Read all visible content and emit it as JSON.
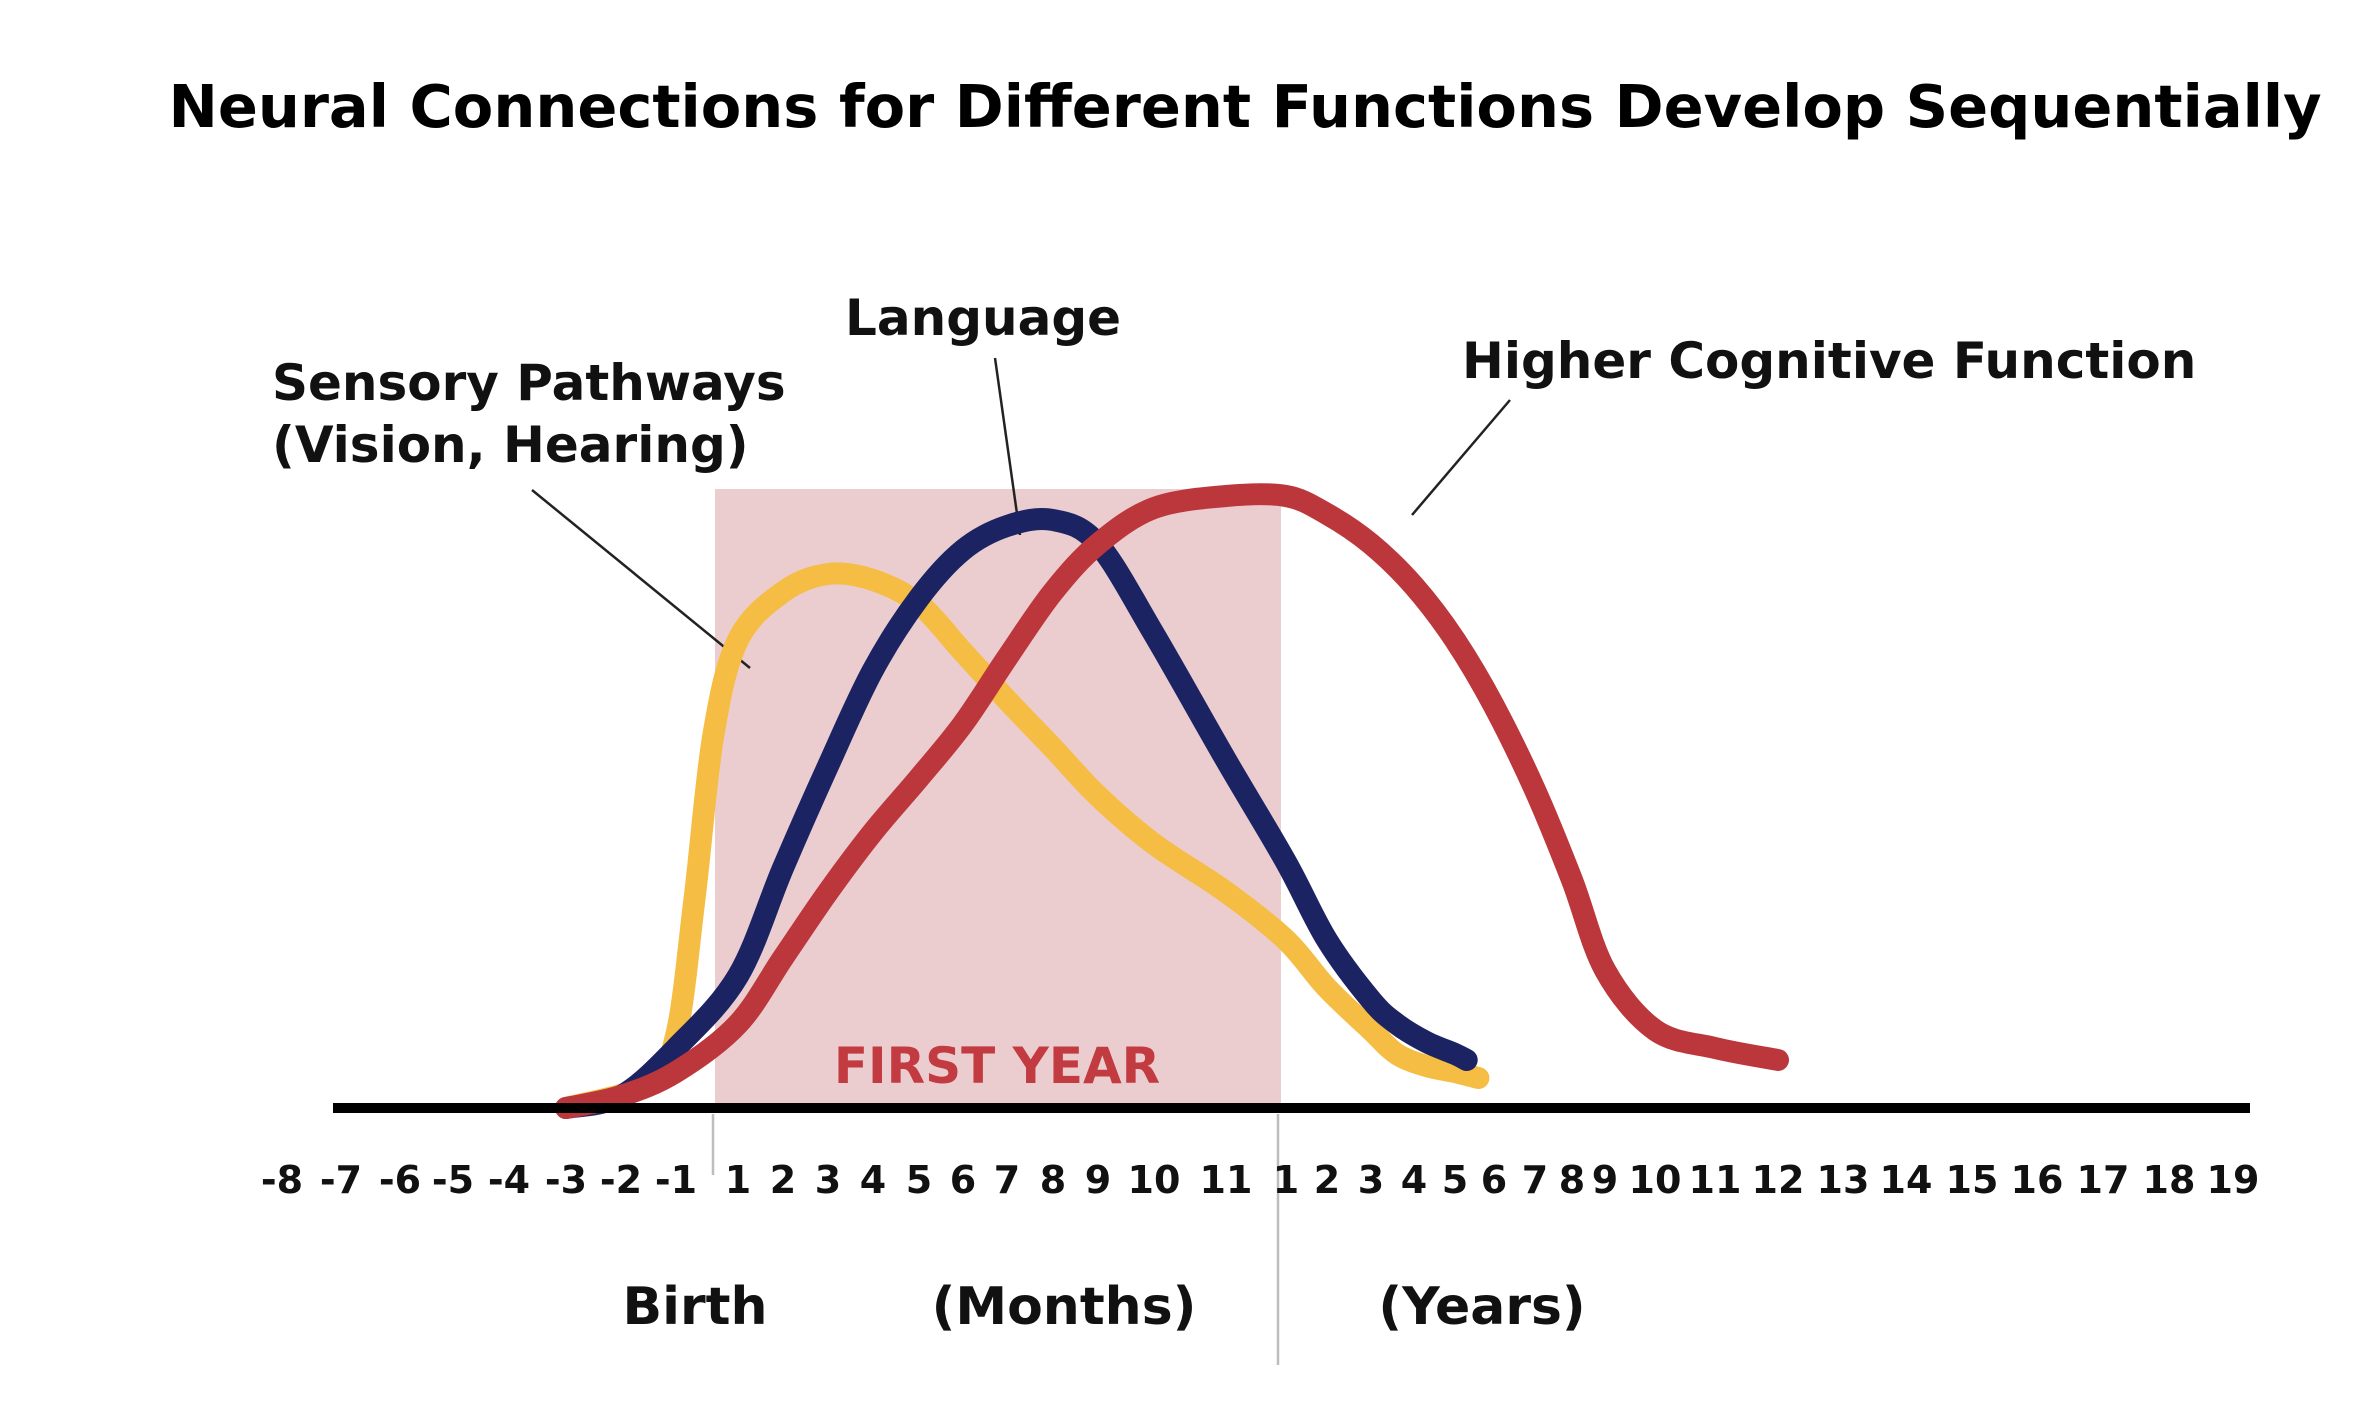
{
  "chart_data": {
    "type": "line",
    "title": "Neural Connections for Different Functions Develop Sequentially",
    "x_ticks": {
      "prenatal": [
        "-8",
        "-7",
        "-6",
        "-5",
        "-4",
        "-3",
        "-2",
        "-1"
      ],
      "months": [
        "1",
        "2",
        "3",
        "4",
        "5",
        "6",
        "7",
        "8",
        "9",
        "10",
        "11"
      ],
      "years": [
        "1",
        "2",
        "3",
        "4",
        "5",
        "6",
        "7",
        "8",
        "9",
        "10",
        "11",
        "12",
        "13",
        "14",
        "15",
        "16",
        "17",
        "18",
        "19"
      ]
    },
    "axis_sections": {
      "birth": "Birth",
      "months": "(Months)",
      "years": "(Years)"
    },
    "highlight_region": {
      "label": "FIRST YEAR",
      "from_tick": "1",
      "to_tick": "1",
      "color": "#ebcdd0",
      "label_color": "#c23b41"
    },
    "axis_color": "#000000",
    "grid": false,
    "legend": "callout labels",
    "series": [
      {
        "name": "Sensory Pathways",
        "label_lines": [
          "Sensory Pathways",
          "(Vision, Hearing)"
        ],
        "color": "#f5bd43",
        "points": [
          [
            -3,
            0.0
          ],
          [
            -1.5,
            0.04
          ],
          [
            -1,
            0.12
          ],
          [
            -0.7,
            0.35
          ],
          [
            -0.4,
            0.62
          ],
          [
            0,
            0.78
          ],
          [
            1,
            0.86
          ],
          [
            2,
            0.89
          ],
          [
            3,
            0.88
          ],
          [
            4,
            0.84
          ],
          [
            5,
            0.76
          ],
          [
            6,
            0.68
          ],
          [
            7,
            0.6
          ],
          [
            8,
            0.52
          ],
          [
            9,
            0.44
          ],
          [
            10,
            0.36
          ],
          [
            11,
            0.28
          ],
          [
            12,
            0.2
          ],
          [
            13,
            0.13
          ],
          [
            13.6,
            0.09
          ],
          [
            14.3,
            0.07
          ],
          [
            15,
            0.06
          ],
          [
            15.6,
            0.05
          ]
        ]
      },
      {
        "name": "Language",
        "label_lines": [
          "Language"
        ],
        "color": "#1b2363",
        "points": [
          [
            -3,
            0.0
          ],
          [
            -2,
            0.02
          ],
          [
            -1,
            0.1
          ],
          [
            0,
            0.22
          ],
          [
            1,
            0.4
          ],
          [
            2,
            0.57
          ],
          [
            3,
            0.73
          ],
          [
            4,
            0.85
          ],
          [
            5,
            0.93
          ],
          [
            6,
            0.97
          ],
          [
            7,
            0.98
          ],
          [
            8,
            0.94
          ],
          [
            9,
            0.79
          ],
          [
            10,
            0.58
          ],
          [
            11,
            0.41
          ],
          [
            12,
            0.28
          ],
          [
            13,
            0.18
          ],
          [
            13.6,
            0.14
          ],
          [
            14.3,
            0.11
          ],
          [
            15,
            0.09
          ],
          [
            15.3,
            0.08
          ]
        ]
      },
      {
        "name": "Higher Cognitive Function",
        "label_lines": [
          "Higher Cognitive Function"
        ],
        "color": "#bc373c",
        "points": [
          [
            -3,
            0.0
          ],
          [
            -2,
            0.02
          ],
          [
            -1,
            0.06
          ],
          [
            0,
            0.14
          ],
          [
            1,
            0.25
          ],
          [
            2,
            0.36
          ],
          [
            3,
            0.46
          ],
          [
            4,
            0.55
          ],
          [
            5,
            0.64
          ],
          [
            6,
            0.75
          ],
          [
            7,
            0.86
          ],
          [
            8,
            0.94
          ],
          [
            9,
            1.0
          ],
          [
            10,
            1.02
          ],
          [
            11,
            1.02
          ],
          [
            12,
            0.99
          ],
          [
            13,
            0.94
          ],
          [
            14,
            0.87
          ],
          [
            15,
            0.78
          ],
          [
            16,
            0.67
          ],
          [
            17,
            0.53
          ],
          [
            18,
            0.38
          ],
          [
            19,
            0.23
          ],
          [
            20,
            0.13
          ],
          [
            21,
            0.1
          ],
          [
            22,
            0.08
          ]
        ]
      }
    ]
  }
}
